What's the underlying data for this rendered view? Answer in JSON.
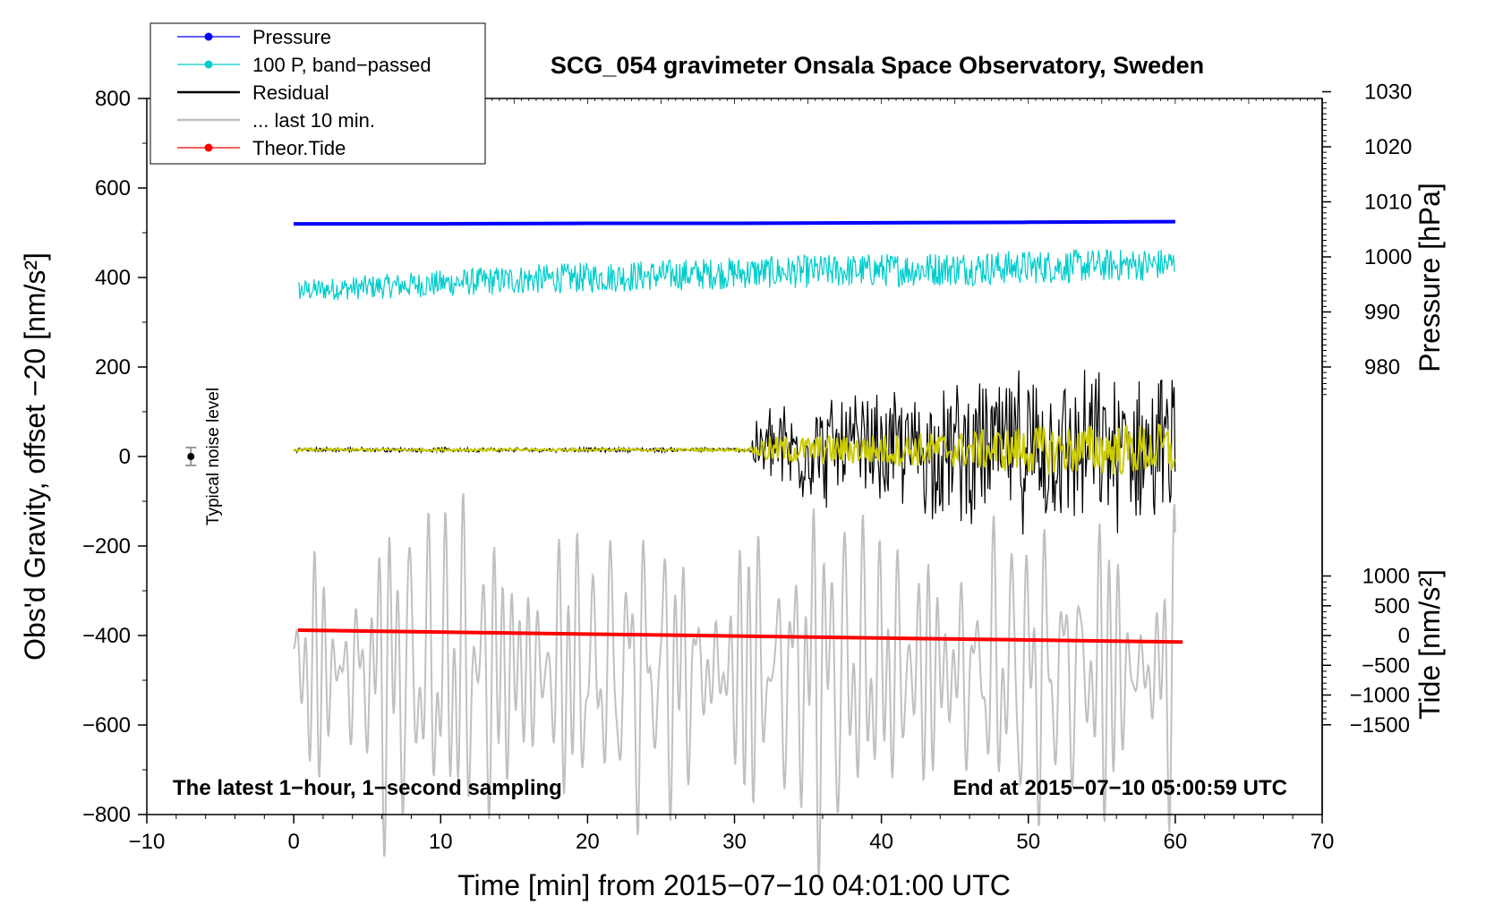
{
  "chart_data": {
    "type": "line",
    "title": "SCG_054 gravimeter Onsala Space Observatory, Sweden",
    "xlabel": "Time [min] from 2015−07−10 04:01:00 UTC",
    "ylabel_left": "Obs'd Gravity, offset −20 [nm/s²]",
    "ylabel_right_top": "Pressure [hPa]",
    "ylabel_right_bottom": "Tide [nm/s²]",
    "xlim": [
      -10,
      70
    ],
    "ylim_left": [
      -800,
      800
    ],
    "x_ticks": [
      {
        "value": -10,
        "label": "−10"
      },
      {
        "value": 0,
        "label": "0"
      },
      {
        "value": 10,
        "label": "10"
      },
      {
        "value": 20,
        "label": "20"
      },
      {
        "value": 30,
        "label": "30"
      },
      {
        "value": 40,
        "label": "40"
      },
      {
        "value": 50,
        "label": "50"
      },
      {
        "value": 60,
        "label": "60"
      },
      {
        "value": 70,
        "label": "70"
      }
    ],
    "y_ticks_left": [
      {
        "value": 800,
        "label": "800"
      },
      {
        "value": 600,
        "label": "600"
      },
      {
        "value": 400,
        "label": "400"
      },
      {
        "value": 200,
        "label": "200"
      },
      {
        "value": 0,
        "label": "0"
      },
      {
        "value": -200,
        "label": "−200"
      },
      {
        "value": -400,
        "label": "−400"
      },
      {
        "value": -600,
        "label": "−600"
      },
      {
        "value": -800,
        "label": "−800"
      }
    ],
    "pressure_axis": {
      "left_at_980": 200,
      "left_per_hpa": 12.3,
      "ticks": [
        {
          "value": 1030,
          "label": "1030"
        },
        {
          "value": 1020,
          "label": "1020"
        },
        {
          "value": 1010,
          "label": "1010"
        },
        {
          "value": 1000,
          "label": "1000"
        },
        {
          "value": 990,
          "label": "990"
        },
        {
          "value": 980,
          "label": "980"
        }
      ]
    },
    "tide_axis": {
      "left_at_0": -400,
      "left_per_unit": 0.133,
      "ticks": [
        {
          "value": 1000,
          "label": "1000"
        },
        {
          "value": 500,
          "label": "500"
        },
        {
          "value": 0,
          "label": "0"
        },
        {
          "value": -500,
          "label": "−500"
        },
        {
          "value": -1000,
          "label": "−1000"
        },
        {
          "value": -1500,
          "label": "−1500"
        }
      ]
    },
    "legend": [
      {
        "label": "Pressure",
        "color": "#0000ff",
        "marker": true
      },
      {
        "label": "100 P, band−passed",
        "color": "#00cccc",
        "marker": true
      },
      {
        "label": "Residual",
        "color": "#000000",
        "marker": false
      },
      {
        "label": "... last 10 min.",
        "color": "#c0c0c0",
        "marker": false
      },
      {
        "label": "Theor.Tide",
        "color": "#ff0000",
        "marker": true
      }
    ],
    "annotations": {
      "left_note": "The latest 1−hour, 1−second sampling",
      "right_note": "End at 2015−07−10 05:00:59 UTC",
      "noise_label": "Typical noise level"
    },
    "noise_level": {
      "x": -7,
      "y": 0,
      "error": 20
    },
    "series": {
      "pressure": {
        "name": "Pressure",
        "color": "#0000ff",
        "axis": "pressure_hPa",
        "x": [
          0,
          10,
          20,
          30,
          40,
          50,
          60
        ],
        "values": [
          1006.0,
          1006.0,
          1006.1,
          1006.1,
          1006.2,
          1006.3,
          1006.4
        ]
      },
      "pressure_bandpassed": {
        "name": "100 P, band-passed",
        "color": "#00cccc",
        "axis": "left_nm_s2",
        "x_start": 0.3,
        "x_end": 60,
        "envelope": [
          [
            0,
            370,
            40
          ],
          [
            15,
            395,
            55
          ],
          [
            30,
            410,
            60
          ],
          [
            45,
            420,
            65
          ],
          [
            60,
            430,
            60
          ]
        ]
      },
      "residual": {
        "name": "Residual",
        "color": "#000000",
        "axis": "left_nm_s2",
        "x_start": 0,
        "x_end": 60,
        "baseline": 15,
        "amplitude_profile": [
          [
            0,
            5
          ],
          [
            31,
            5
          ],
          [
            32,
            110
          ],
          [
            40,
            120
          ],
          [
            45,
            150
          ],
          [
            50,
            170
          ],
          [
            60,
            160
          ]
        ]
      },
      "residual_smoothed": {
        "name": "residual smoothed",
        "color": "#cccc00",
        "axis": "left_nm_s2",
        "x_start": 0,
        "x_end": 60,
        "baseline": 15,
        "amplitude_profile": [
          [
            0,
            3
          ],
          [
            31,
            3
          ],
          [
            32,
            30
          ],
          [
            45,
            40
          ],
          [
            50,
            55
          ],
          [
            60,
            60
          ]
        ]
      },
      "last_10_min": {
        "name": "... last 10 min.",
        "color": "#c0c0c0",
        "axis": "left_nm_s2",
        "x_start": 0,
        "x_end": 60,
        "baseline": -480,
        "amplitude": 190
      },
      "theoretical_tide": {
        "name": "Theor.Tide",
        "color": "#ff0000",
        "axis": "tide_nm_s2",
        "x": [
          0.3,
          60.5
        ],
        "values": [
          90,
          -110
        ]
      }
    }
  }
}
